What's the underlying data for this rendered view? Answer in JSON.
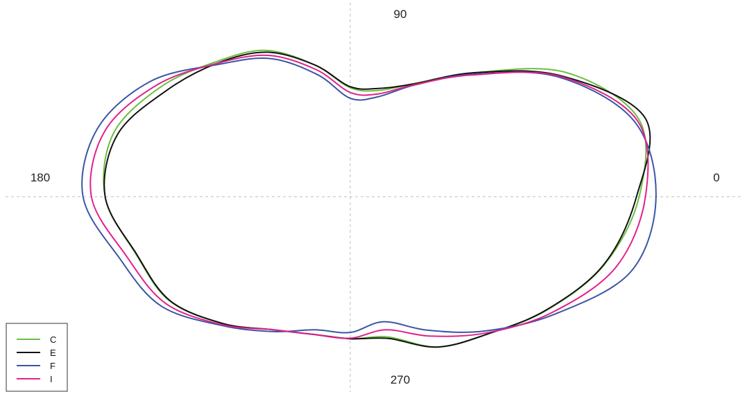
{
  "chart_data": {
    "type": "polar",
    "angle_unit": "degrees",
    "angle_labels": [
      "0",
      "90",
      "180",
      "270"
    ],
    "grid_lines": "dashed crosshair",
    "legend_position": "bottom-left",
    "series": [
      {
        "name": "C",
        "color": "#6abf40",
        "points": [
          {
            "angle": 0,
            "r": 5.48
          },
          {
            "angle": 15,
            "r": 5.67
          },
          {
            "angle": 30,
            "r": 4.72
          },
          {
            "angle": 45,
            "r": 3.33
          },
          {
            "angle": 60,
            "r": 2.49
          },
          {
            "angle": 75,
            "r": 2.09
          },
          {
            "angle": 90,
            "r": 2.07
          },
          {
            "angle": 105,
            "r": 2.59
          },
          {
            "angle": 120,
            "r": 3.21
          },
          {
            "angle": 135,
            "r": 3.62
          },
          {
            "angle": 150,
            "r": 4.16
          },
          {
            "angle": 165,
            "r": 4.65
          },
          {
            "angle": 180,
            "r": 4.65
          },
          {
            "angle": 195,
            "r": 4.21
          },
          {
            "angle": 210,
            "r": 3.96
          },
          {
            "angle": 225,
            "r": 3.41
          },
          {
            "angle": 240,
            "r": 2.92
          },
          {
            "angle": 255,
            "r": 2.71
          },
          {
            "angle": 270,
            "r": 2.7
          },
          {
            "angle": 285,
            "r": 2.76
          },
          {
            "angle": 300,
            "r": 3.3
          },
          {
            "angle": 315,
            "r": 3.69
          },
          {
            "angle": 330,
            "r": 4.31
          },
          {
            "angle": 345,
            "r": 4.99
          }
        ]
      },
      {
        "name": "E",
        "color": "#111111",
        "points": [
          {
            "angle": 0,
            "r": 5.43
          },
          {
            "angle": 15,
            "r": 5.79
          },
          {
            "angle": 30,
            "r": 4.6
          },
          {
            "angle": 45,
            "r": 3.33
          },
          {
            "angle": 60,
            "r": 2.48
          },
          {
            "angle": 75,
            "r": 2.13
          },
          {
            "angle": 90,
            "r": 2.09
          },
          {
            "angle": 105,
            "r": 2.59
          },
          {
            "angle": 120,
            "r": 3.17
          },
          {
            "angle": 135,
            "r": 3.58
          },
          {
            "angle": 150,
            "r": 4.03
          },
          {
            "angle": 165,
            "r": 4.57
          },
          {
            "angle": 180,
            "r": 4.65
          },
          {
            "angle": 195,
            "r": 4.2
          },
          {
            "angle": 210,
            "r": 3.95
          },
          {
            "angle": 225,
            "r": 3.41
          },
          {
            "angle": 240,
            "r": 2.92
          },
          {
            "angle": 255,
            "r": 2.71
          },
          {
            "angle": 270,
            "r": 2.7
          },
          {
            "angle": 285,
            "r": 2.79
          },
          {
            "angle": 300,
            "r": 3.3
          },
          {
            "angle": 315,
            "r": 3.69
          },
          {
            "angle": 330,
            "r": 4.3
          },
          {
            "angle": 345,
            "r": 4.98
          }
        ]
      },
      {
        "name": "F",
        "color": "#3a55a4",
        "points": [
          {
            "angle": 0,
            "r": 5.8
          },
          {
            "angle": 15,
            "r": 5.57
          },
          {
            "angle": 30,
            "r": 4.55
          },
          {
            "angle": 45,
            "r": 3.29
          },
          {
            "angle": 60,
            "r": 2.45
          },
          {
            "angle": 75,
            "r": 1.96
          },
          {
            "angle": 90,
            "r": 1.87
          },
          {
            "angle": 105,
            "r": 2.4
          },
          {
            "angle": 120,
            "r": 3.03
          },
          {
            "angle": 135,
            "r": 3.55
          },
          {
            "angle": 150,
            "r": 4.38
          },
          {
            "angle": 165,
            "r": 4.97
          },
          {
            "angle": 180,
            "r": 5.07
          },
          {
            "angle": 195,
            "r": 4.53
          },
          {
            "angle": 210,
            "r": 4.15
          },
          {
            "angle": 225,
            "r": 3.46
          },
          {
            "angle": 240,
            "r": 2.96
          },
          {
            "angle": 255,
            "r": 2.62
          },
          {
            "angle": 270,
            "r": 2.58
          },
          {
            "angle": 285,
            "r": 2.46
          },
          {
            "angle": 300,
            "r": 2.93
          },
          {
            "angle": 315,
            "r": 3.61
          },
          {
            "angle": 330,
            "r": 4.47
          },
          {
            "angle": 345,
            "r": 5.51
          }
        ]
      },
      {
        "name": "I",
        "color": "#e0218a",
        "points": [
          {
            "angle": 0,
            "r": 5.6
          },
          {
            "angle": 15,
            "r": 5.63
          },
          {
            "angle": 30,
            "r": 4.58
          },
          {
            "angle": 45,
            "r": 3.27
          },
          {
            "angle": 60,
            "r": 2.46
          },
          {
            "angle": 75,
            "r": 2.02
          },
          {
            "angle": 90,
            "r": 1.98
          },
          {
            "angle": 105,
            "r": 2.5
          },
          {
            "angle": 120,
            "r": 3.1
          },
          {
            "angle": 135,
            "r": 3.58
          },
          {
            "angle": 150,
            "r": 4.24
          },
          {
            "angle": 165,
            "r": 4.82
          },
          {
            "angle": 180,
            "r": 4.91
          },
          {
            "angle": 195,
            "r": 4.39
          },
          {
            "angle": 210,
            "r": 4.05
          },
          {
            "angle": 225,
            "r": 3.44
          },
          {
            "angle": 240,
            "r": 2.92
          },
          {
            "angle": 255,
            "r": 2.71
          },
          {
            "angle": 270,
            "r": 2.69
          },
          {
            "angle": 285,
            "r": 2.62
          },
          {
            "angle": 300,
            "r": 3.06
          },
          {
            "angle": 315,
            "r": 3.66
          },
          {
            "angle": 330,
            "r": 4.41
          },
          {
            "angle": 345,
            "r": 5.21
          }
        ]
      }
    ]
  }
}
